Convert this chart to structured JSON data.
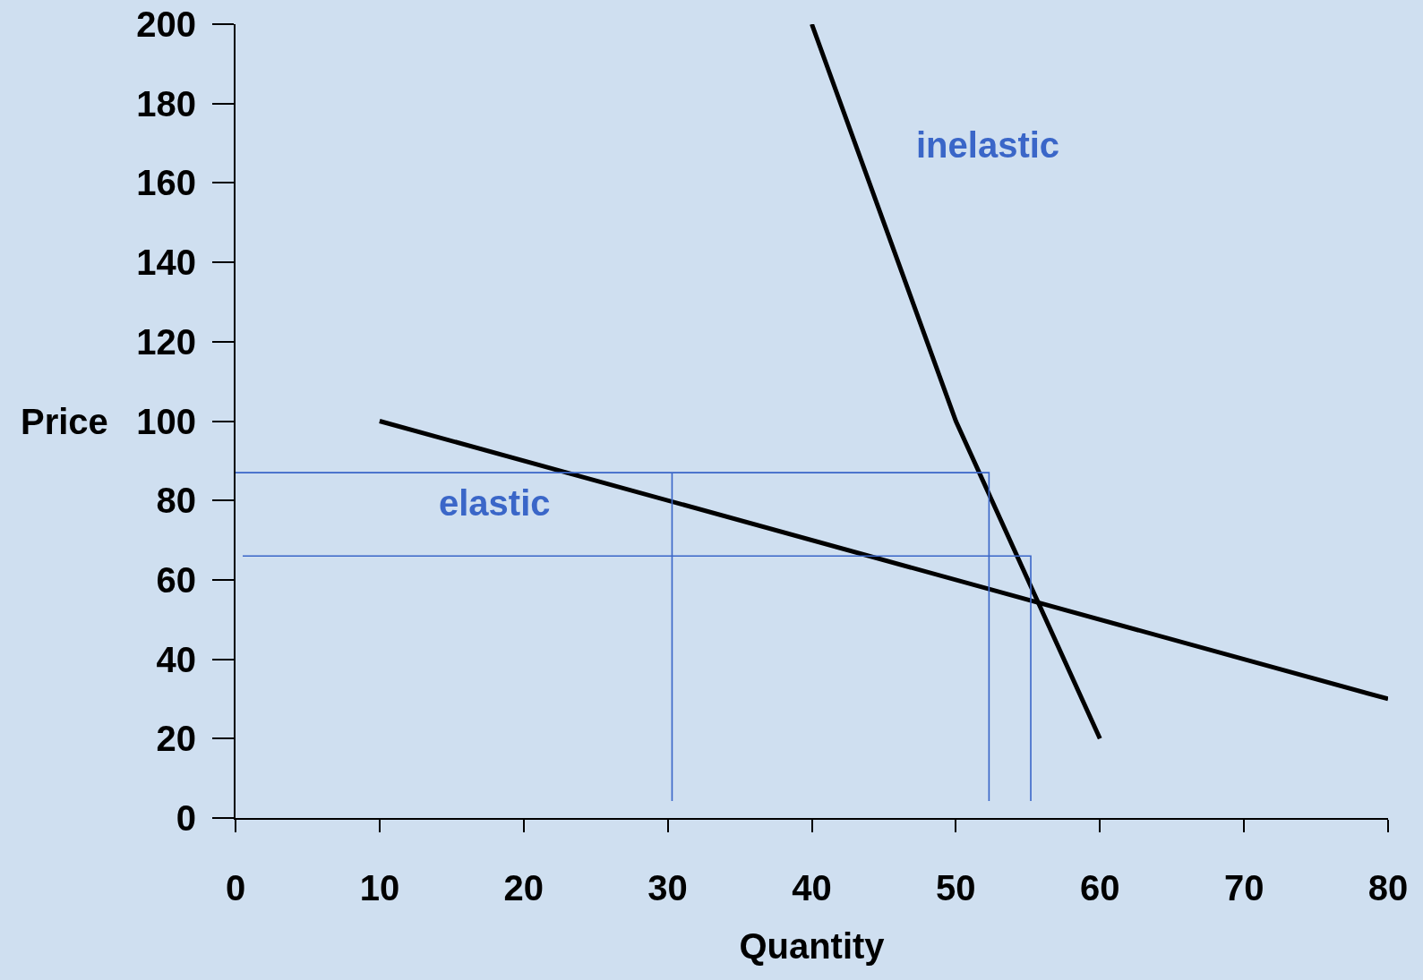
{
  "chart_data": {
    "type": "line",
    "xlabel": "Quantity",
    "ylabel": "Price",
    "xlim": [
      0,
      80
    ],
    "xticks": [
      0,
      10,
      20,
      30,
      40,
      50,
      60,
      70,
      80
    ],
    "ylim": [
      0,
      200
    ],
    "yticks": [
      0,
      20,
      40,
      60,
      80,
      100,
      120,
      140,
      160,
      180,
      200
    ],
    "grid": false,
    "marker": "none",
    "line_style": "solid",
    "series": [
      {
        "color": "#000000",
        "x": [
          10,
          80
        ],
        "values": [
          100,
          30
        ]
      },
      {
        "color": "#000000",
        "x": [
          40,
          50,
          60
        ],
        "values": [
          200,
          100,
          20
        ]
      },
      {
        "color": "#3a66c8",
        "x": [
          0,
          52.3,
          52.3
        ],
        "values": [
          87,
          87,
          4.3
        ]
      },
      {
        "color": "#3a66c8",
        "x": [
          0.5,
          55.2,
          55.2
        ],
        "values": [
          66,
          66,
          4.3
        ]
      },
      {
        "color": "#3a66c8",
        "x": [
          30.3,
          30.3
        ],
        "values": [
          87,
          4.3
        ]
      }
    ],
    "annotations": [
      "inelastic",
      "elastic"
    ]
  }
}
